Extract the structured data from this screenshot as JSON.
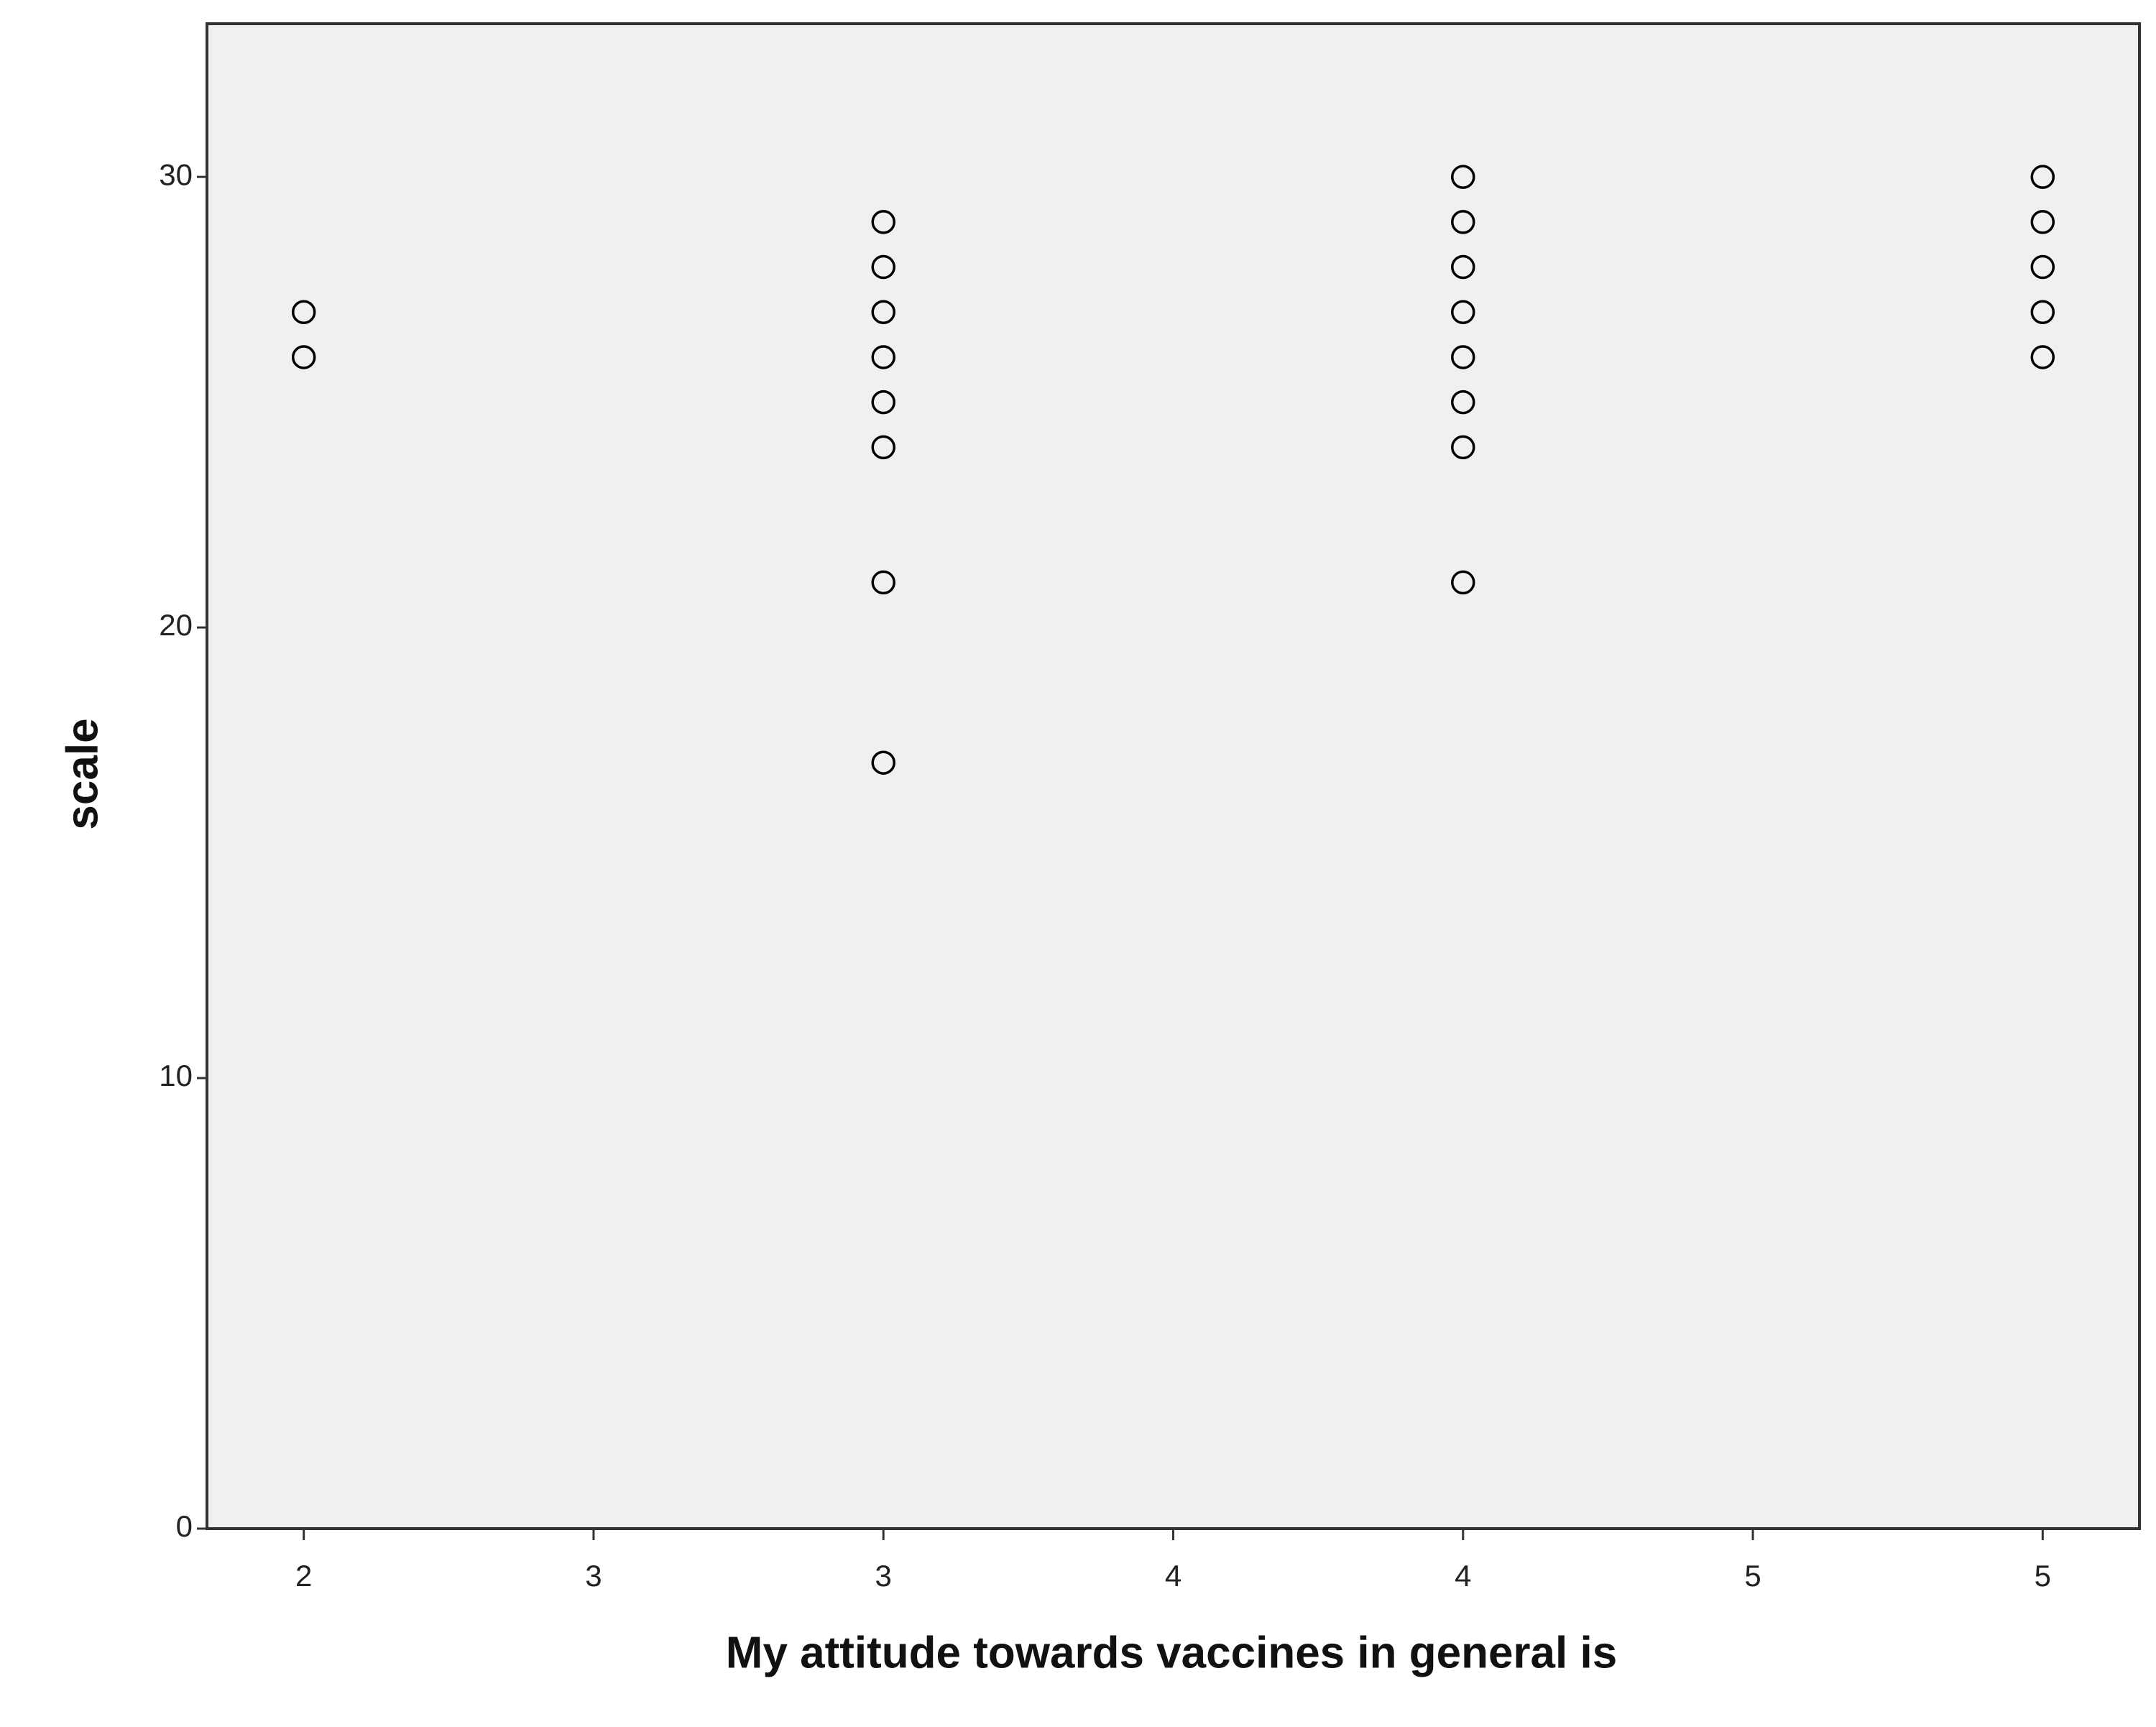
{
  "chart_data": {
    "type": "scatter",
    "x_label": "My attitude towards vaccines in general is",
    "y_label": "scale",
    "x": [
      2,
      2,
      3,
      3,
      3,
      3,
      3,
      3,
      3,
      3,
      4,
      4,
      4,
      4,
      4,
      4,
      4,
      4,
      5,
      5,
      5,
      5,
      5
    ],
    "y": [
      27,
      26,
      29,
      28,
      27,
      26,
      25,
      24,
      21,
      17,
      30,
      29,
      28,
      27,
      26,
      25,
      24,
      21,
      30,
      29,
      28,
      27,
      26
    ],
    "marker_color": "#000000",
    "background": "#f0f0f0",
    "xlim": [
      1.833,
      5.167
    ],
    "ylim": [
      0,
      33.4
    ],
    "xticks": [
      2,
      {
        "value": 2.5,
        "label": "3"
      },
      3,
      {
        "value": 3.5,
        "label": "4"
      },
      4,
      {
        "value": 4.5,
        "label": "5"
      },
      5
    ],
    "yticks": [
      0,
      10,
      20,
      30
    ]
  }
}
